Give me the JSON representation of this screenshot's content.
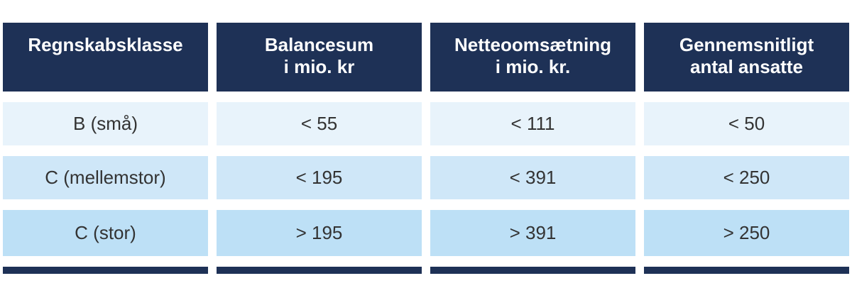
{
  "theme": {
    "navy": "#1e3156",
    "row1_bg": "#e8f3fb",
    "row2_bg": "#cfe7f8",
    "row3_bg": "#bde0f6",
    "header_text": "#ffffff",
    "body_text": "#333333"
  },
  "table": {
    "headers": [
      {
        "line1": "Regnskabsklasse",
        "line2": ""
      },
      {
        "line1": "Balancesum",
        "line2": "i mio. kr"
      },
      {
        "line1": "Netteoomsætning",
        "line2": "i mio. kr."
      },
      {
        "line1": "Gennemsnitligt",
        "line2": "antal ansatte"
      }
    ],
    "rows": [
      {
        "cells": [
          "B (små)",
          "< 55",
          "< 111",
          "< 50"
        ]
      },
      {
        "cells": [
          "C (mellemstor)",
          "< 195",
          "< 391",
          "< 250"
        ]
      },
      {
        "cells": [
          "C (stor)",
          "> 195",
          "> 391",
          "> 250"
        ]
      }
    ]
  },
  "chart_data": {
    "type": "table",
    "columns": [
      "Regnskabsklasse",
      "Balancesum i mio. kr",
      "Netteoomsætning i mio. kr.",
      "Gennemsnitligt antal ansatte"
    ],
    "rows": [
      [
        "B (små)",
        "< 55",
        "< 111",
        "< 50"
      ],
      [
        "C (mellemstor)",
        "< 195",
        "< 391",
        "< 250"
      ],
      [
        "C (stor)",
        "> 195",
        "> 391",
        "> 250"
      ]
    ],
    "title": "",
    "legend": "none",
    "grid": "off"
  }
}
